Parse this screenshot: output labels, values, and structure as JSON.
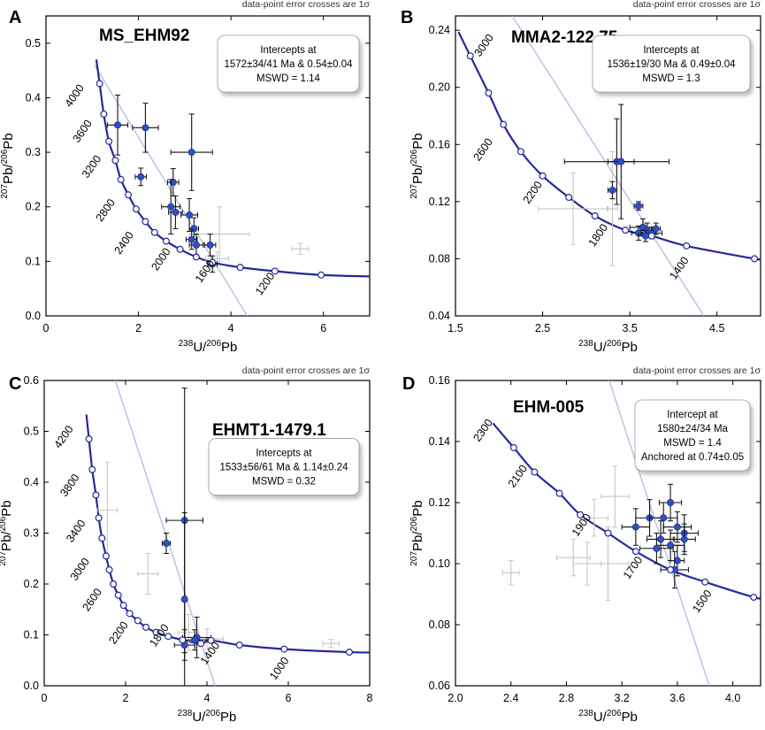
{
  "colors": {
    "concordia": "#26289a",
    "point": "#3150c4",
    "grey_point": "#c6c6c6",
    "discordia": "#b9bde6",
    "axis": "#000000",
    "box_border": "#9a9a9a"
  },
  "chart_data": [
    {
      "panel_label": "A",
      "type": "scatter",
      "subtype": "U-Pb Tera-Wasserburg concordia",
      "title": "MS_EHM92",
      "note": "data-point error crosses are 1σ",
      "xlabel": "238U/206Pb",
      "ylabel": "207Pb/206Pb",
      "xlim": [
        0,
        7
      ],
      "ylim": [
        0,
        0.55
      ],
      "xticks": [
        0,
        2,
        4,
        6
      ],
      "yticks": [
        0.0,
        0.1,
        0.2,
        0.3,
        0.4,
        0.5
      ],
      "xtick_labels": [
        "0",
        "2",
        "4",
        "6"
      ],
      "ytick_labels": [
        "0.0",
        "0.1",
        "0.2",
        "0.3",
        "0.4",
        "0.5"
      ],
      "info_box": [
        "Intercepts at",
        "1572±34/41 Ma & 0.54±0.04",
        "MSWD = 1.14"
      ],
      "info_box_side": "top-right",
      "age_labels": [
        {
          "text": "4000",
          "x": 0.68,
          "y": 0.4
        },
        {
          "text": "3600",
          "x": 0.85,
          "y": 0.335
        },
        {
          "text": "3200",
          "x": 1.05,
          "y": 0.27
        },
        {
          "text": "2800",
          "x": 1.35,
          "y": 0.19
        },
        {
          "text": "2400",
          "x": 1.75,
          "y": 0.13
        },
        {
          "text": "2000",
          "x": 2.55,
          "y": 0.1
        },
        {
          "text": "1600",
          "x": 3.5,
          "y": 0.078
        },
        {
          "text": "1200",
          "x": 4.8,
          "y": 0.055
        }
      ],
      "concordia_points": [
        {
          "x": 1.16,
          "y": 0.426
        },
        {
          "x": 1.25,
          "y": 0.37
        },
        {
          "x": 1.36,
          "y": 0.32
        },
        {
          "x": 1.5,
          "y": 0.285
        },
        {
          "x": 1.62,
          "y": 0.25
        },
        {
          "x": 1.78,
          "y": 0.222
        },
        {
          "x": 1.95,
          "y": 0.196
        },
        {
          "x": 2.15,
          "y": 0.173
        },
        {
          "x": 2.35,
          "y": 0.153
        },
        {
          "x": 2.6,
          "y": 0.137
        },
        {
          "x": 2.9,
          "y": 0.122
        },
        {
          "x": 3.25,
          "y": 0.108
        },
        {
          "x": 3.6,
          "y": 0.098
        },
        {
          "x": 4.2,
          "y": 0.089
        },
        {
          "x": 4.95,
          "y": 0.082
        },
        {
          "x": 5.95,
          "y": 0.075
        }
      ],
      "discordia": [
        {
          "x": 1.05,
          "y": 0.46
        },
        {
          "x": 4.35,
          "y": 0.0
        }
      ],
      "points": [
        {
          "x": 1.55,
          "y": 0.35,
          "ex": 0.22,
          "ey": 0.055,
          "grey": false
        },
        {
          "x": 2.15,
          "y": 0.345,
          "ex": 0.28,
          "ey": 0.045,
          "grey": false
        },
        {
          "x": 2.05,
          "y": 0.255,
          "ex": 0.12,
          "ey": 0.016,
          "grey": false
        },
        {
          "x": 3.15,
          "y": 0.3,
          "ex": 0.45,
          "ey": 0.07,
          "grey": false
        },
        {
          "x": 2.75,
          "y": 0.245,
          "ex": 0.12,
          "ey": 0.025,
          "grey": false
        },
        {
          "x": 2.7,
          "y": 0.2,
          "ex": 0.2,
          "ey": 0.05,
          "grey": false
        },
        {
          "x": 2.8,
          "y": 0.19,
          "ex": 0.15,
          "ey": 0.03,
          "grey": false
        },
        {
          "x": 3.1,
          "y": 0.185,
          "ex": 0.18,
          "ey": 0.03,
          "grey": false
        },
        {
          "x": 3.2,
          "y": 0.16,
          "ex": 0.1,
          "ey": 0.02,
          "grey": false
        },
        {
          "x": 3.15,
          "y": 0.14,
          "ex": 0.12,
          "ey": 0.018,
          "grey": false
        },
        {
          "x": 3.25,
          "y": 0.13,
          "ex": 0.15,
          "ey": 0.02,
          "grey": false
        },
        {
          "x": 3.55,
          "y": 0.13,
          "ex": 0.12,
          "ey": 0.02,
          "grey": false
        },
        {
          "x": 3.6,
          "y": 0.095,
          "ex": 0.1,
          "ey": 0.015,
          "grey": false
        },
        {
          "x": 3.75,
          "y": 0.15,
          "ex": 0.65,
          "ey": 0.05,
          "grey": true
        },
        {
          "x": 5.5,
          "y": 0.123,
          "ex": 0.18,
          "ey": 0.01,
          "grey": true
        },
        {
          "x": 3.7,
          "y": 0.105,
          "ex": 0.25,
          "ey": 0.012,
          "grey": true
        }
      ]
    },
    {
      "panel_label": "B",
      "type": "scatter",
      "subtype": "U-Pb Tera-Wasserburg concordia",
      "title": "MMA2-122.75",
      "note": "data-point error crosses are 1σ",
      "xlabel": "238U/206Pb",
      "ylabel": "207Pb/206Pb",
      "xlim": [
        1.5,
        5.0
      ],
      "ylim": [
        0.04,
        0.25
      ],
      "xticks": [
        1.5,
        2.5,
        3.5,
        4.5
      ],
      "yticks": [
        0.04,
        0.08,
        0.12,
        0.16,
        0.2,
        0.24
      ],
      "xtick_labels": [
        "1.5",
        "2.5",
        "3.5",
        "4.5"
      ],
      "ytick_labels": [
        "0.04",
        "0.08",
        "0.12",
        "0.16",
        "0.20",
        "0.24"
      ],
      "info_box": [
        "Intercepts at",
        "1536±19/30 Ma & 0.49±0.04",
        "MSWD = 1.3"
      ],
      "info_box_side": "top-right",
      "age_labels": [
        {
          "text": "3000",
          "x": 1.86,
          "y": 0.228
        },
        {
          "text": "2600",
          "x": 1.85,
          "y": 0.155
        },
        {
          "text": "2200",
          "x": 2.42,
          "y": 0.125
        },
        {
          "text": "1800",
          "x": 3.17,
          "y": 0.095
        },
        {
          "text": "1400",
          "x": 4.1,
          "y": 0.072
        }
      ],
      "concordia_points": [
        {
          "x": 1.67,
          "y": 0.222
        },
        {
          "x": 1.88,
          "y": 0.196
        },
        {
          "x": 2.05,
          "y": 0.174
        },
        {
          "x": 2.25,
          "y": 0.155
        },
        {
          "x": 2.5,
          "y": 0.138
        },
        {
          "x": 2.8,
          "y": 0.123
        },
        {
          "x": 3.1,
          "y": 0.11
        },
        {
          "x": 3.45,
          "y": 0.1
        },
        {
          "x": 3.75,
          "y": 0.096
        },
        {
          "x": 4.15,
          "y": 0.089
        },
        {
          "x": 4.93,
          "y": 0.08
        }
      ],
      "discordia": [
        {
          "x": 2.15,
          "y": 0.25
        },
        {
          "x": 4.35,
          "y": 0.04
        }
      ],
      "points": [
        {
          "x": 3.35,
          "y": 0.148,
          "ex": 0.6,
          "ey": 0.03,
          "grey": false
        },
        {
          "x": 3.4,
          "y": 0.148,
          "ex": 0.15,
          "ey": 0.04,
          "grey": false
        },
        {
          "x": 3.3,
          "y": 0.128,
          "ex": 0.05,
          "ey": 0.006,
          "grey": false
        },
        {
          "x": 3.6,
          "y": 0.117,
          "ex": 0.05,
          "ey": 0.003,
          "grey": false
        },
        {
          "x": 3.65,
          "y": 0.102,
          "ex": 0.15,
          "ey": 0.006,
          "grey": false
        },
        {
          "x": 3.7,
          "y": 0.1,
          "ex": 0.1,
          "ey": 0.005,
          "grey": false
        },
        {
          "x": 3.6,
          "y": 0.098,
          "ex": 0.08,
          "ey": 0.005,
          "grey": false
        },
        {
          "x": 3.75,
          "y": 0.098,
          "ex": 0.12,
          "ey": 0.004,
          "grey": false
        },
        {
          "x": 3.68,
          "y": 0.096,
          "ex": 0.08,
          "ey": 0.004,
          "grey": false
        },
        {
          "x": 3.8,
          "y": 0.101,
          "ex": 0.05,
          "ey": 0.004,
          "grey": false
        },
        {
          "x": 2.85,
          "y": 0.115,
          "ex": 0.4,
          "ey": 0.025,
          "grey": true
        },
        {
          "x": 3.3,
          "y": 0.115,
          "ex": 0.06,
          "ey": 0.04,
          "grey": true
        }
      ]
    },
    {
      "panel_label": "C",
      "type": "scatter",
      "subtype": "U-Pb Tera-Wasserburg concordia",
      "title": "EHMT1-1479.1",
      "note": "data-point error crosses are 1σ",
      "xlabel": "238U/206Pb",
      "ylabel": "207Pb/206Pb",
      "xlim": [
        0,
        8
      ],
      "ylim": [
        0,
        0.6
      ],
      "xticks": [
        0,
        2,
        4,
        6,
        8
      ],
      "yticks": [
        0.0,
        0.1,
        0.2,
        0.3,
        0.4,
        0.5,
        0.6
      ],
      "xtick_labels": [
        "0",
        "2",
        "4",
        "6",
        "8"
      ],
      "ytick_labels": [
        "0.0",
        "0.1",
        "0.2",
        "0.3",
        "0.4",
        "0.5",
        "0.6"
      ],
      "info_box": [
        "Intercepts at",
        "1533±56/61 Ma & 1.14±0.24",
        "MSWD = 0.32"
      ],
      "info_box_side": "middle-right",
      "age_labels": [
        {
          "text": "4200",
          "x": 0.55,
          "y": 0.485
        },
        {
          "text": "3800",
          "x": 0.7,
          "y": 0.39
        },
        {
          "text": "3400",
          "x": 0.85,
          "y": 0.3
        },
        {
          "text": "3000",
          "x": 0.95,
          "y": 0.225
        },
        {
          "text": "2600",
          "x": 1.25,
          "y": 0.165
        },
        {
          "text": "2200",
          "x": 1.9,
          "y": 0.1
        },
        {
          "text": "1800",
          "x": 2.9,
          "y": 0.095
        },
        {
          "text": "1400",
          "x": 4.15,
          "y": 0.06
        },
        {
          "text": "1000",
          "x": 5.85,
          "y": 0.03
        }
      ],
      "concordia_points": [
        {
          "x": 1.1,
          "y": 0.485
        },
        {
          "x": 1.18,
          "y": 0.425
        },
        {
          "x": 1.27,
          "y": 0.375
        },
        {
          "x": 1.34,
          "y": 0.33
        },
        {
          "x": 1.42,
          "y": 0.29
        },
        {
          "x": 1.52,
          "y": 0.255
        },
        {
          "x": 1.6,
          "y": 0.228
        },
        {
          "x": 1.7,
          "y": 0.2
        },
        {
          "x": 1.82,
          "y": 0.178
        },
        {
          "x": 1.95,
          "y": 0.158
        },
        {
          "x": 2.1,
          "y": 0.142
        },
        {
          "x": 2.3,
          "y": 0.128
        },
        {
          "x": 2.5,
          "y": 0.115
        },
        {
          "x": 2.75,
          "y": 0.105
        },
        {
          "x": 3.05,
          "y": 0.097
        },
        {
          "x": 3.4,
          "y": 0.09
        },
        {
          "x": 3.85,
          "y": 0.083
        },
        {
          "x": 4.1,
          "y": 0.089
        },
        {
          "x": 4.8,
          "y": 0.08
        },
        {
          "x": 5.9,
          "y": 0.072
        },
        {
          "x": 7.5,
          "y": 0.066
        }
      ],
      "discordia": [
        {
          "x": 1.75,
          "y": 0.6
        },
        {
          "x": 4.2,
          "y": 0.0
        }
      ],
      "points": [
        {
          "x": 3.45,
          "y": 0.325,
          "ex": 0.45,
          "ey": 0.26,
          "grey": false
        },
        {
          "x": 3.0,
          "y": 0.28,
          "ex": 0.1,
          "ey": 0.02,
          "grey": false
        },
        {
          "x": 3.45,
          "y": 0.17,
          "ex": 0.05,
          "ey": 0.17,
          "grey": false
        },
        {
          "x": 3.75,
          "y": 0.095,
          "ex": 0.35,
          "ey": 0.04,
          "grey": false
        },
        {
          "x": 3.45,
          "y": 0.08,
          "ex": 0.25,
          "ey": 0.03,
          "grey": false
        },
        {
          "x": 3.7,
          "y": 0.09,
          "ex": 0.3,
          "ey": 0.02,
          "grey": false
        },
        {
          "x": 1.55,
          "y": 0.345,
          "ex": 0.25,
          "ey": 0.095,
          "grey": true
        },
        {
          "x": 2.55,
          "y": 0.22,
          "ex": 0.25,
          "ey": 0.04,
          "grey": true
        },
        {
          "x": 3.55,
          "y": 0.105,
          "ex": 0.25,
          "ey": 0.035,
          "grey": true
        },
        {
          "x": 4.0,
          "y": 0.092,
          "ex": 0.4,
          "ey": 0.02,
          "grey": true
        },
        {
          "x": 7.05,
          "y": 0.083,
          "ex": 0.2,
          "ey": 0.008,
          "grey": true
        }
      ]
    },
    {
      "panel_label": "D",
      "type": "scatter",
      "subtype": "U-Pb Tera-Wasserburg concordia",
      "title": "EHM-005",
      "note": "data-point error crosses are 1σ",
      "xlabel": "238U/206Pb",
      "ylabel": "207Pb/206Pb",
      "xlim": [
        2.0,
        4.2
      ],
      "ylim": [
        0.06,
        0.16
      ],
      "xticks": [
        2.0,
        2.4,
        2.8,
        3.2,
        3.6,
        4.0
      ],
      "yticks": [
        0.06,
        0.08,
        0.1,
        0.12,
        0.14,
        0.16
      ],
      "xtick_labels": [
        "2.0",
        "2.4",
        "2.8",
        "3.2",
        "3.6",
        "4.0"
      ],
      "ytick_labels": [
        "0.06",
        "0.08",
        "0.10",
        "0.12",
        "0.14",
        "0.16"
      ],
      "info_box": [
        "Intercept at",
        "1580±24/34 Ma",
        "MSWD = 1.4",
        "Anchored at 0.74±0.05"
      ],
      "info_box_side": "top-right",
      "age_labels": [
        {
          "text": "2300",
          "x": 2.22,
          "y": 0.143
        },
        {
          "text": "2100",
          "x": 2.47,
          "y": 0.128
        },
        {
          "text": "1900",
          "x": 2.93,
          "y": 0.112
        },
        {
          "text": "1700",
          "x": 3.3,
          "y": 0.098
        },
        {
          "text": "1500",
          "x": 3.8,
          "y": 0.087
        }
      ],
      "concordia_points": [
        {
          "x": 2.42,
          "y": 0.138
        },
        {
          "x": 2.57,
          "y": 0.13
        },
        {
          "x": 2.75,
          "y": 0.123
        },
        {
          "x": 2.9,
          "y": 0.116
        },
        {
          "x": 3.1,
          "y": 0.11
        },
        {
          "x": 3.3,
          "y": 0.104
        },
        {
          "x": 3.55,
          "y": 0.098
        },
        {
          "x": 3.8,
          "y": 0.094
        },
        {
          "x": 4.15,
          "y": 0.089
        }
      ],
      "discordia": [
        {
          "x": 3.0,
          "y": 0.175
        },
        {
          "x": 3.83,
          "y": 0.06
        }
      ],
      "points": [
        {
          "x": 3.55,
          "y": 0.12,
          "ex": 0.08,
          "ey": 0.006,
          "grey": false
        },
        {
          "x": 3.3,
          "y": 0.112,
          "ex": 0.1,
          "ey": 0.006,
          "grey": false
        },
        {
          "x": 3.4,
          "y": 0.115,
          "ex": 0.1,
          "ey": 0.006,
          "grey": false
        },
        {
          "x": 3.5,
          "y": 0.115,
          "ex": 0.1,
          "ey": 0.005,
          "grey": false
        },
        {
          "x": 3.6,
          "y": 0.112,
          "ex": 0.1,
          "ey": 0.005,
          "grey": false
        },
        {
          "x": 3.65,
          "y": 0.11,
          "ex": 0.1,
          "ey": 0.006,
          "grey": false
        },
        {
          "x": 3.48,
          "y": 0.108,
          "ex": 0.1,
          "ey": 0.006,
          "grey": false
        },
        {
          "x": 3.55,
          "y": 0.106,
          "ex": 0.1,
          "ey": 0.005,
          "grey": false
        },
        {
          "x": 3.65,
          "y": 0.108,
          "ex": 0.08,
          "ey": 0.005,
          "grey": false
        },
        {
          "x": 3.6,
          "y": 0.101,
          "ex": 0.05,
          "ey": 0.005,
          "grey": false
        },
        {
          "x": 3.58,
          "y": 0.098,
          "ex": 0.1,
          "ey": 0.006,
          "grey": false
        },
        {
          "x": 3.45,
          "y": 0.105,
          "ex": 0.12,
          "ey": 0.005,
          "grey": false
        },
        {
          "x": 2.4,
          "y": 0.097,
          "ex": 0.06,
          "ey": 0.004,
          "grey": true
        },
        {
          "x": 2.85,
          "y": 0.102,
          "ex": 0.12,
          "ey": 0.006,
          "grey": true
        },
        {
          "x": 2.95,
          "y": 0.1,
          "ex": 0.1,
          "ey": 0.007,
          "grey": true
        },
        {
          "x": 3.0,
          "y": 0.115,
          "ex": 0.1,
          "ey": 0.006,
          "grey": true
        },
        {
          "x": 3.1,
          "y": 0.1,
          "ex": 0.15,
          "ey": 0.012,
          "grey": true
        },
        {
          "x": 3.15,
          "y": 0.122,
          "ex": 0.1,
          "ey": 0.01,
          "grey": true
        }
      ]
    }
  ]
}
